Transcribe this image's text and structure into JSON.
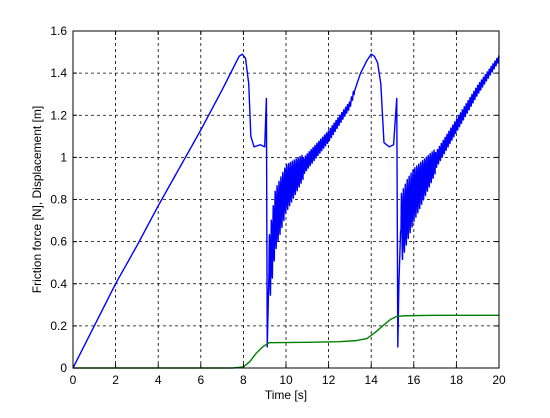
{
  "chart_data": {
    "type": "line",
    "title": "",
    "xlabel": "Time [s]",
    "ylabel": "Friction force [N], Displacement [m]",
    "xlim": [
      0,
      20
    ],
    "ylim": [
      0,
      1.6
    ],
    "grid": true,
    "x_ticks": [
      0,
      2,
      4,
      6,
      8,
      10,
      12,
      14,
      16,
      18,
      20
    ],
    "y_ticks": [
      0,
      0.2,
      0.4,
      0.6,
      0.8,
      1,
      1.2,
      1.4,
      1.6
    ],
    "series": [
      {
        "color": "#0000ff",
        "x": [
          0,
          1,
          2,
          3,
          4,
          5,
          6,
          7,
          7.5,
          7.8,
          7.95,
          8.1,
          8.25,
          8.35,
          8.5,
          8.8,
          9.0,
          9.08,
          9.12,
          9.2,
          9.5,
          10,
          11,
          12,
          13,
          13.5,
          13.8,
          14.0,
          14.15,
          14.3,
          14.45,
          14.6,
          14.85,
          15.05,
          15.2,
          15.25,
          15.3,
          15.38,
          15.7,
          16,
          17,
          18,
          19,
          20
        ],
        "y": [
          0.0,
          0.2,
          0.4,
          0.58,
          0.77,
          0.95,
          1.13,
          1.32,
          1.42,
          1.48,
          1.49,
          1.47,
          1.35,
          1.1,
          1.05,
          1.06,
          1.05,
          1.28,
          0.1,
          0.45,
          0.7,
          0.85,
          0.98,
          1.1,
          1.25,
          1.4,
          1.46,
          1.49,
          1.48,
          1.45,
          1.35,
          1.07,
          1.05,
          1.06,
          1.28,
          0.1,
          0.4,
          0.65,
          0.75,
          0.82,
          0.98,
          1.15,
          1.32,
          1.47
        ],
        "oscillation_windows": [
          [
            9.2,
            10.8,
            0.17
          ],
          [
            15.4,
            17.0,
            0.17
          ],
          [
            10.8,
            13.2,
            0.04
          ],
          [
            17.0,
            20.0,
            0.04
          ]
        ]
      },
      {
        "color": "#007f00",
        "x": [
          0,
          7.5,
          8.0,
          8.3,
          8.6,
          8.9,
          9.2,
          11,
          12.5,
          13.3,
          13.8,
          14.2,
          14.6,
          14.9,
          15.2,
          15.6,
          17,
          20
        ],
        "y": [
          0,
          0,
          0.005,
          0.03,
          0.07,
          0.1,
          0.12,
          0.122,
          0.125,
          0.13,
          0.14,
          0.17,
          0.205,
          0.23,
          0.245,
          0.248,
          0.25,
          0.25
        ]
      }
    ]
  }
}
